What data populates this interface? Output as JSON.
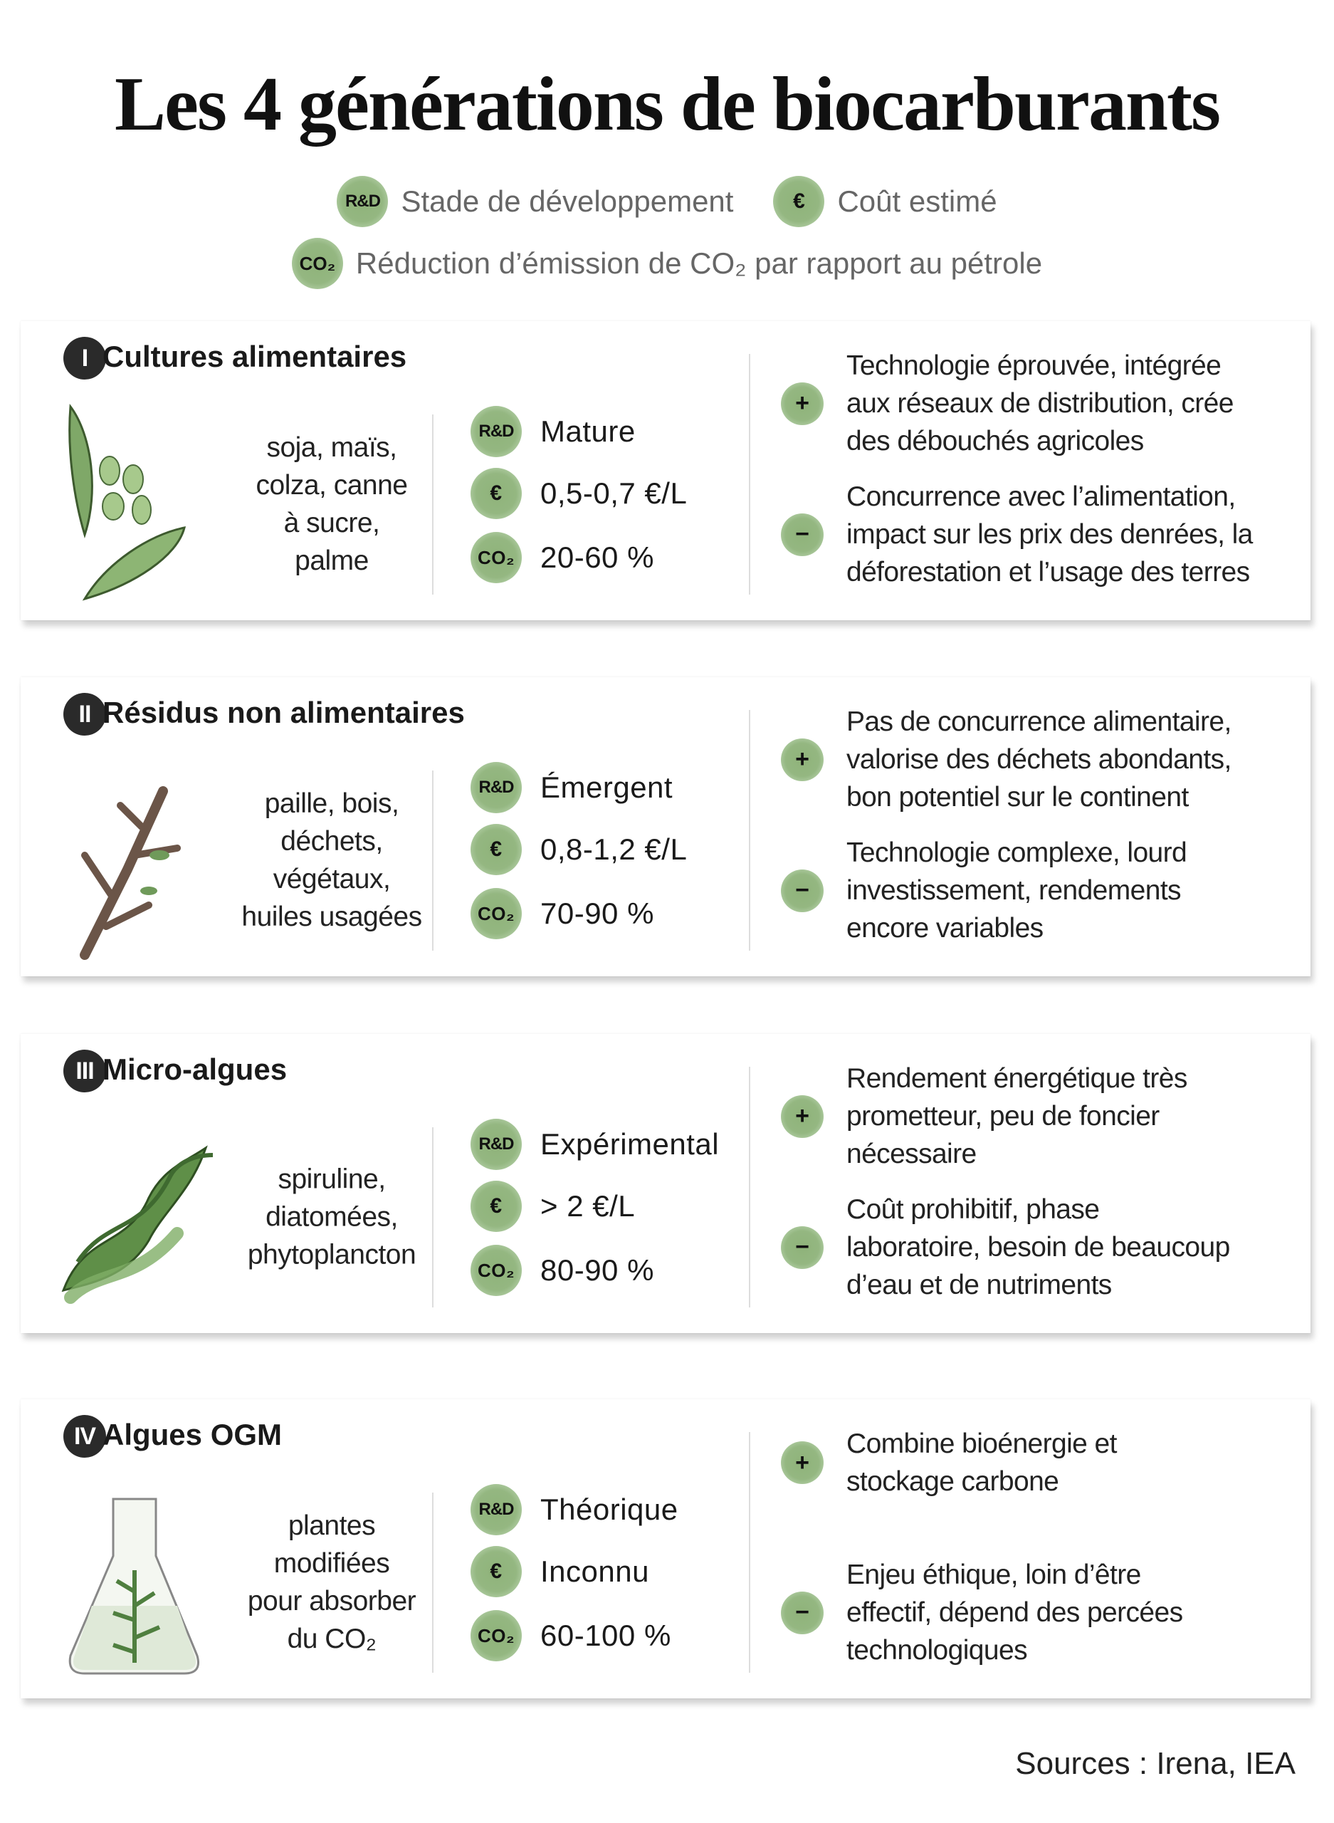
{
  "title": "Les 4 générations de biocarburants",
  "legend": [
    {
      "icon": "R&D",
      "icon_name": "rd-icon",
      "label": "Stade de développement"
    },
    {
      "icon": "€",
      "icon_name": "euro-icon",
      "label": "Coût estimé"
    },
    {
      "icon": "CO₂",
      "icon_name": "co2-icon",
      "label": "Réduction d’émission de CO₂ par rapport au pétrole"
    }
  ],
  "colors": {
    "badge_green": "#93b57f",
    "number_badge": "#2a2a2a"
  },
  "generations": [
    {
      "num": "I",
      "title": "Cultures alimentaires",
      "illustration": "pea-pod-icon",
      "sources": [
        "soja, maïs,",
        "colza, canne",
        "à sucre,",
        "palme"
      ],
      "rd": "Mature",
      "cost": "0,5-0,7 €/L",
      "co2": "20-60 %",
      "pros": [
        "Technologie éprouvée, intégrée",
        "aux réseaux de distribution, crée",
        "des débouchés agricoles"
      ],
      "cons": [
        "Concurrence avec l’alimentation,",
        "impact sur les prix des denrées, la",
        "déforestation et l’usage des terres"
      ]
    },
    {
      "num": "II",
      "title": "Résidus non alimentaires",
      "illustration": "twigs-icon",
      "sources": [
        "paille, bois,",
        "déchets,",
        "végétaux,",
        "huiles usagées"
      ],
      "rd": "Émergent",
      "cost": "0,8-1,2 €/L",
      "co2": "70-90 %",
      "pros": [
        "Pas de concurrence alimentaire,",
        "valorise des déchets abondants,",
        "bon potentiel sur le continent"
      ],
      "cons": [
        "Technologie complexe, lourd",
        "investissement, rendements",
        "encore variables"
      ]
    },
    {
      "num": "III",
      "title": "Micro-algues",
      "illustration": "seaweed-icon",
      "sources": [
        "spiruline,",
        "diatomées,",
        "phytoplancton"
      ],
      "rd": "Expérimental",
      "cost": "> 2 €/L",
      "co2": "80-90 %",
      "pros": [
        "Rendement énergétique très",
        "prometteur, peu de foncier",
        "nécessaire"
      ],
      "cons": [
        "Coût prohibitif, phase",
        "laboratoire, besoin de beaucoup",
        "d’eau et de nutriments"
      ]
    },
    {
      "num": "IV",
      "title": "Algues OGM",
      "illustration": "flask-icon",
      "sources": [
        "plantes",
        "modifiées",
        "pour absorber",
        "du CO₂"
      ],
      "rd": "Théorique",
      "cost": "Inconnu",
      "co2": "60-100 %",
      "pros": [
        "Combine bioénergie et",
        "stockage carbone"
      ],
      "cons": [
        "Enjeu éthique, loin d’être",
        "effectif, dépend des percées",
        "technologiques"
      ]
    }
  ],
  "sources_label": "Sources : Irena, IEA"
}
